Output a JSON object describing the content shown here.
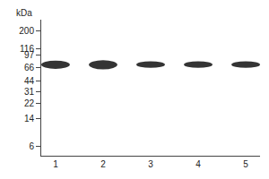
{
  "chart_data": {
    "type": "gel",
    "y_label": "kDa",
    "categories": [
      "1",
      "2",
      "3",
      "4",
      "5"
    ],
    "values": [
      72,
      72,
      72,
      72,
      72
    ],
    "band_heights": [
      18,
      20,
      14,
      14,
      14
    ],
    "color": "#111111",
    "log": "y",
    "ylim": [
      4.5,
      280
    ],
    "yticks": [
      200,
      116,
      97,
      66,
      44,
      31,
      22,
      14,
      6
    ],
    "grid": false
  }
}
